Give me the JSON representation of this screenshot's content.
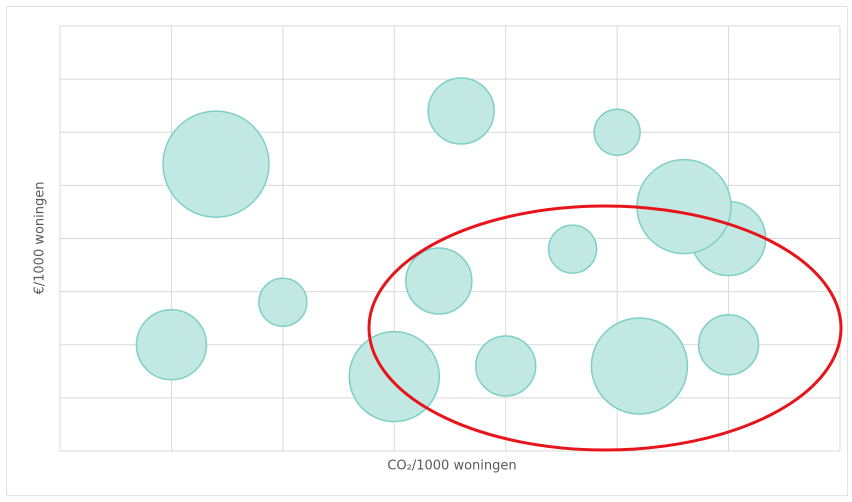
{
  "chart_data": {
    "type": "bubble",
    "x_label": "CO₂/1000 woningen",
    "y_label": "€/1000 woningen",
    "x": [
      1.0,
      1.4,
      2.0,
      3.0,
      3.6,
      3.4,
      4.0,
      4.6,
      5.0,
      5.2,
      6.0,
      5.6,
      6.0
    ],
    "values": [
      2.0,
      5.4,
      2.8,
      1.4,
      6.4,
      3.2,
      1.6,
      3.8,
      6.0,
      1.6,
      4.0,
      4.6,
      2.0
    ],
    "sizes": [
      35,
      53,
      24,
      45,
      33,
      33,
      30,
      24,
      23,
      48,
      37,
      47,
      30
    ],
    "color": "#c2e8e3",
    "edge_color": "#7fd0c3",
    "xlim": [
      0,
      7
    ],
    "ylim": [
      0,
      8
    ],
    "xticks": [
      0,
      1,
      2,
      3,
      4,
      5,
      6,
      7
    ],
    "yticks": [
      0,
      1,
      2,
      3,
      4,
      5,
      6,
      7,
      8
    ],
    "grid": true
  }
}
